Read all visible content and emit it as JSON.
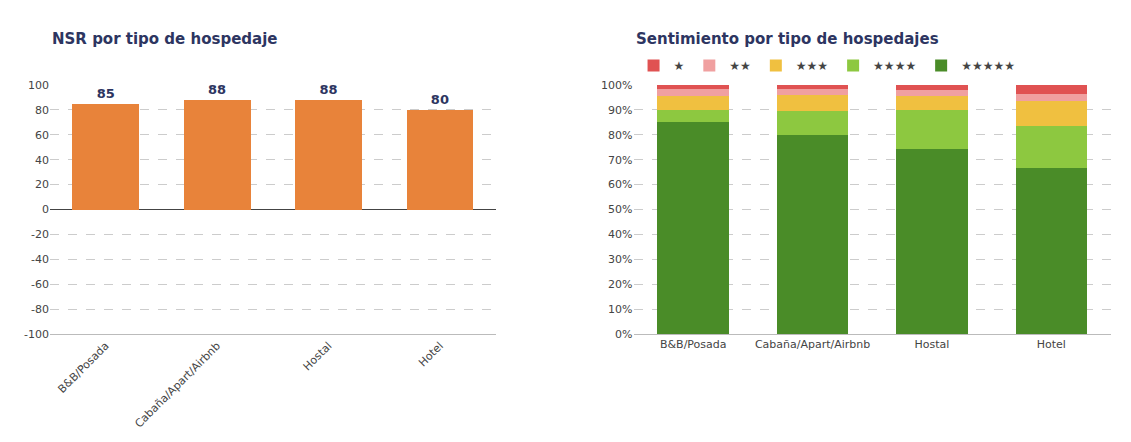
{
  "chart_data": [
    {
      "type": "bar",
      "title": "NSR por tipo de hospedaje",
      "categories": [
        "B&B/Posada",
        "Cabaña/Apart/Airbnb",
        "Hostal",
        "Hotel"
      ],
      "values": [
        85,
        88,
        88,
        80
      ],
      "color": "#E8833A",
      "ylim": [
        -100,
        100
      ],
      "yticks": [
        -100,
        -80,
        -60,
        -40,
        -20,
        0,
        20,
        40,
        60,
        80,
        100
      ],
      "grid": true,
      "data_labels": true
    },
    {
      "type": "bar",
      "title": "Sentimiento por tipo de hospedajes",
      "categories": [
        "B&B/Posada",
        "Cabaña/Apart/Airbnb",
        "Hostal",
        "Hotel"
      ],
      "stacked": true,
      "series": [
        {
          "name": "★★★★★",
          "color": "#4A8C28",
          "values": [
            0.85,
            0.8,
            0.745,
            0.665
          ]
        },
        {
          "name": "★★★★",
          "color": "#8DC840",
          "values": [
            0.05,
            0.095,
            0.155,
            0.17
          ]
        },
        {
          "name": "★★★",
          "color": "#F0C040",
          "values": [
            0.055,
            0.065,
            0.055,
            0.1
          ]
        },
        {
          "name": "★★",
          "color": "#F0A0A0",
          "values": [
            0.03,
            0.025,
            0.025,
            0.03
          ]
        },
        {
          "name": "★",
          "color": "#E05252",
          "values": [
            0.015,
            0.015,
            0.02,
            0.035
          ]
        }
      ],
      "ylim": [
        0,
        1.0
      ],
      "yticks": [
        {
          "value": 0,
          "label": "0%"
        },
        {
          "value": 0.1,
          "label": "10%"
        },
        {
          "value": 0.2,
          "label": "20%"
        },
        {
          "value": 0.3,
          "label": "30%"
        },
        {
          "value": 0.4,
          "label": "40%"
        },
        {
          "value": 0.5,
          "label": "50%"
        },
        {
          "value": 0.6,
          "label": "60%"
        },
        {
          "value": 0.7,
          "label": "70%"
        },
        {
          "value": 0.8,
          "label": "80%"
        },
        {
          "value": 0.9,
          "label": "90%"
        },
        {
          "value": 1.0,
          "label": "100%"
        }
      ],
      "grid": true,
      "legend": "upper left"
    }
  ]
}
